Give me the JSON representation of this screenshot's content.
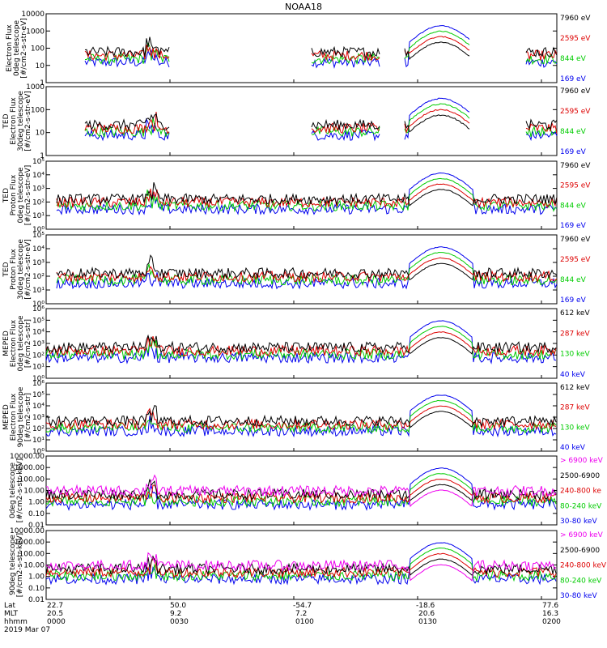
{
  "title": "NOAA18",
  "footer": {
    "labels": [
      "Lat",
      "MLT",
      "hhmm"
    ],
    "date": "2019 Mar 07",
    "columns": [
      {
        "lat": "22.7",
        "mlt": "20.5",
        "hhmm": "0000"
      },
      {
        "lat": "50.0",
        "mlt": "9.2",
        "hhmm": "0030"
      },
      {
        "lat": "-54.7",
        "mlt": "7.2",
        "hhmm": "0100"
      },
      {
        "lat": "-18.6",
        "mlt": "20.6",
        "hhmm": "0130"
      },
      {
        "lat": "77.6",
        "mlt": "16.3",
        "hhmm": "0200"
      }
    ]
  },
  "chart_data": [
    {
      "type": "line",
      "ylabel": [
        "Electron Flux",
        "0deg telescope",
        "[#/cm2-s-str-eV]"
      ],
      "ticks": [
        "1",
        "10",
        "100",
        "1000",
        "10000"
      ],
      "yrange_log": [
        0,
        4
      ],
      "legend": [
        {
          "label": "7960 eV",
          "color": "#000000"
        },
        {
          "label": "2595 eV",
          "color": "#dd0000"
        },
        {
          "label": "844 eV",
          "color": "#00cc00"
        },
        {
          "label": "169 eV",
          "color": "#0000ee"
        }
      ]
    },
    {
      "type": "line",
      "ylabel": [
        "TED",
        "Electron Flux",
        "30deg telescope",
        "[#/cm2-s-str-eV]"
      ],
      "ticks": [
        "1",
        "10",
        "100",
        "1000"
      ],
      "yrange_log": [
        0,
        3
      ],
      "legend": [
        {
          "label": "7960 eV",
          "color": "#000000"
        },
        {
          "label": "2595 eV",
          "color": "#dd0000"
        },
        {
          "label": "844 eV",
          "color": "#00cc00"
        },
        {
          "label": "169 eV",
          "color": "#0000ee"
        }
      ]
    },
    {
      "type": "line",
      "ylabel": [
        "TED",
        "Proton Flux",
        "0deg telescope",
        "[#/cm2-s-str-eV]"
      ],
      "ticks": [
        "10⁰",
        "10¹",
        "10²",
        "10³",
        "10⁴",
        "10⁵"
      ],
      "yrange_log": [
        0,
        5
      ],
      "legend": [
        {
          "label": "7960 eV",
          "color": "#000000"
        },
        {
          "label": "2595 eV",
          "color": "#dd0000"
        },
        {
          "label": "844 eV",
          "color": "#00cc00"
        },
        {
          "label": "169 eV",
          "color": "#0000ee"
        }
      ]
    },
    {
      "type": "line",
      "ylabel": [
        "TED",
        "Proton Flux",
        "30deg telescope",
        "[#/cm2-s-str-eV]"
      ],
      "ticks": [
        "10⁰",
        "10¹",
        "10²",
        "10³",
        "10⁴",
        "10⁵"
      ],
      "yrange_log": [
        0,
        5
      ],
      "legend": [
        {
          "label": "7960 eV",
          "color": "#000000"
        },
        {
          "label": "2595 eV",
          "color": "#dd0000"
        },
        {
          "label": "844 eV",
          "color": "#00cc00"
        },
        {
          "label": "169 eV",
          "color": "#0000ee"
        }
      ]
    },
    {
      "type": "line",
      "ylabel": [
        "MEPED",
        "Electron Flux",
        "0deg telescope",
        "[#/cm2-s-str]"
      ],
      "ticks": [
        "10⁰",
        "10¹",
        "10²",
        "10³",
        "10⁴",
        "10⁵",
        "10⁶"
      ],
      "yrange_log": [
        0,
        6
      ],
      "legend": [
        {
          "label": "612 keV",
          "color": "#000000"
        },
        {
          "label": "287 keV",
          "color": "#dd0000"
        },
        {
          "label": "130 keV",
          "color": "#00cc00"
        },
        {
          "label": "40 keV",
          "color": "#0000ee"
        }
      ]
    },
    {
      "type": "line",
      "ylabel": [
        "MEPED",
        "Electron Flux",
        "90deg telescope",
        "[#/cm2-s-str]"
      ],
      "ticks": [
        "10⁰",
        "10¹",
        "10²",
        "10³",
        "10⁴",
        "10⁵",
        "10⁶"
      ],
      "yrange_log": [
        0,
        6
      ],
      "legend": [
        {
          "label": "612 keV",
          "color": "#000000"
        },
        {
          "label": "287 keV",
          "color": "#dd0000"
        },
        {
          "label": "130 keV",
          "color": "#00cc00"
        },
        {
          "label": "40 keV",
          "color": "#0000ee"
        }
      ]
    },
    {
      "type": "line",
      "ylabel": [
        "0deg telescope",
        "[#/cm2-s-str-keV]"
      ],
      "ticks": [
        "0.01",
        "0.10",
        "1.00",
        "10.00",
        "100.00",
        "1000.00",
        "10000.00"
      ],
      "yrange_log": [
        -2,
        4
      ],
      "legend": [
        {
          "label": "> 6900 keV",
          "color": "#ee00ee"
        },
        {
          "label": "2500-6900",
          "color": "#000000"
        },
        {
          "label": "240-800 ke",
          "color": "#dd0000"
        },
        {
          "label": "80-240 keV",
          "color": "#00cc00"
        },
        {
          "label": "30-80 keV",
          "color": "#0000ee"
        }
      ]
    },
    {
      "type": "line",
      "ylabel": [
        "90deg telescope",
        "[#/cm2-s-str-keV]"
      ],
      "ticks": [
        "0.01",
        "0.10",
        "1.00",
        "10.00",
        "100.00",
        "1000.00",
        "10000.00"
      ],
      "yrange_log": [
        -2,
        4
      ],
      "legend": [
        {
          "label": "> 6900 keV",
          "color": "#ee00ee"
        },
        {
          "label": "2500-6900",
          "color": "#000000"
        },
        {
          "label": "240-800 keV",
          "color": "#dd0000"
        },
        {
          "label": "80-240 keV",
          "color": "#00cc00"
        },
        {
          "label": "30-80 keV",
          "color": "#0000ee"
        }
      ]
    }
  ]
}
